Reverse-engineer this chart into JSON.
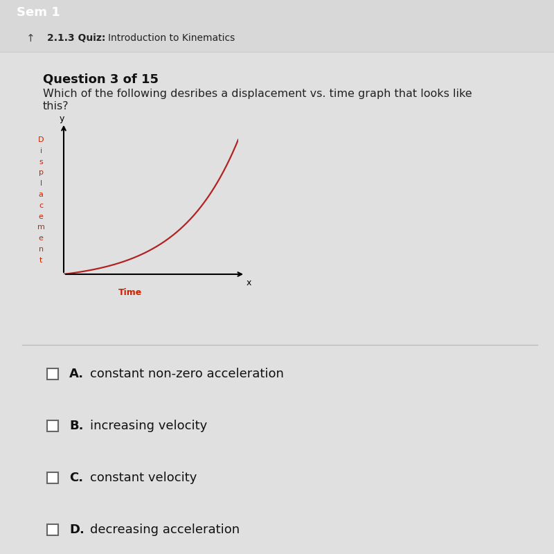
{
  "header_color": "#1e8080",
  "header_text": "Sem 1",
  "subheader_text": "2.1.3 Quiz:",
  "subheader_text2": "Introduction to Kinematics",
  "question_label": "Question 3 of 15",
  "question_text1": "Which of the following desribes a displacement vs. time graph that looks like",
  "question_text2": "this?",
  "ylabel_chars": [
    "D",
    "i",
    "s",
    "p",
    "l",
    "a",
    "c",
    "e",
    "m",
    "e",
    "n",
    "t"
  ],
  "xlabel_text": "Time",
  "axis_label_y": "y",
  "axis_label_x": "x",
  "curve_color": "#b22222",
  "axis_color": "#000000",
  "choices": [
    {
      "label": "A.",
      "text": "constant non-zero acceleration"
    },
    {
      "label": "B.",
      "text": "increasing velocity"
    },
    {
      "label": "C.",
      "text": "constant velocity"
    },
    {
      "label": "D.",
      "text": "decreasing acceleration"
    }
  ],
  "choice_fontsize": 13,
  "body_bg_top": "#e8e8e8",
  "body_bg_bottom": "#c8c8c8",
  "divider_color": "#bbbbbb",
  "white_section_bg": "#f0f0f0"
}
